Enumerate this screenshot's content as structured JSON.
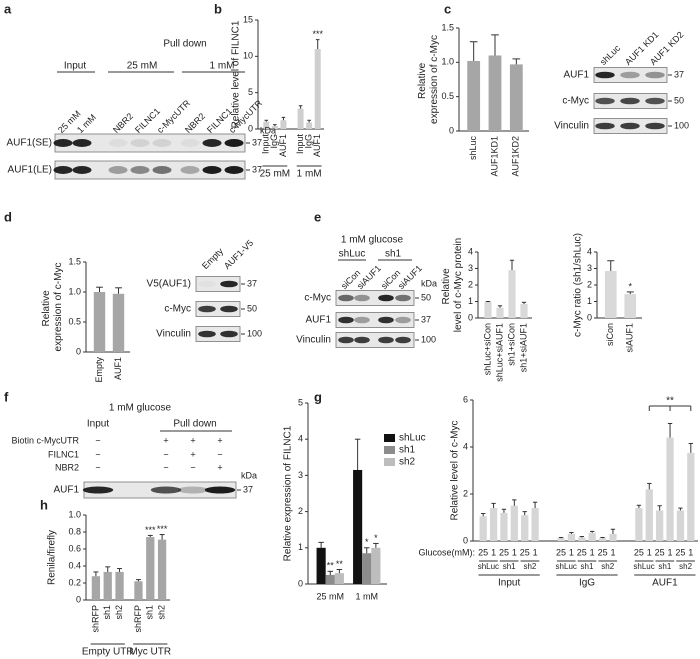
{
  "panel_labels": [
    "a",
    "b",
    "c",
    "d",
    "e",
    "f",
    "g",
    "h"
  ],
  "chart_data": [
    {
      "type": "bar",
      "ylabel": "Relative level of FILNC1",
      "categories": [
        "Input",
        "IgG",
        "AUF1",
        "Input",
        "IgG",
        "AUF1"
      ],
      "groups": [
        "25 mM",
        "1 mM"
      ],
      "values": [
        1.0,
        0.4,
        1.2,
        2.8,
        0.9,
        11.0
      ],
      "errors": [
        0.2,
        0.2,
        0.4,
        0.4,
        0.3,
        1.3
      ],
      "annotations": [
        null,
        null,
        null,
        null,
        null,
        "***"
      ],
      "color": "#cfcfcf",
      "ylim": [
        0,
        15
      ],
      "yticks": [
        0,
        5,
        10,
        15
      ]
    },
    {
      "type": "bar",
      "ylabel": "Relative expression of c-Myc",
      "categories": [
        "shLuc",
        "AUF1KD1",
        "AUF1KD2"
      ],
      "values": [
        1.02,
        1.1,
        0.97
      ],
      "errors": [
        0.28,
        0.3,
        0.08
      ],
      "color": "#a6a6a6",
      "ylim": [
        0,
        1.5
      ],
      "yticks": [
        0,
        0.5,
        {
          "value": 1,
          "label": "1.0"
        },
        1.5
      ]
    },
    {
      "type": "bar",
      "ylabel": "Relative expression of c-Myc",
      "categories": [
        "Empty",
        "AUF1"
      ],
      "values": [
        1.0,
        0.97
      ],
      "errors": [
        0.08,
        0.1
      ],
      "color": "#a6a6a6",
      "ylim": [
        0,
        1.5
      ],
      "yticks": [
        0,
        0.5,
        {
          "value": 1,
          "label": "1.0"
        },
        1.5
      ]
    },
    {
      "type": "bar",
      "ylabel": "Relative level of c-Myc protein",
      "categories": [
        "shLuc+siCon",
        "shLuc+siAUF1",
        "sh1+siCon",
        "sh1+siAUF1"
      ],
      "values": [
        1.0,
        0.62,
        2.9,
        0.85
      ],
      "errors": [
        0,
        0.12,
        0.6,
        0.1
      ],
      "color": "#d9d9d9",
      "ylim": [
        0,
        4
      ],
      "yticks": [
        0,
        1,
        2,
        3,
        4
      ]
    },
    {
      "type": "bar",
      "ylabel": "c-Myc ratio (sh1/shLuc)",
      "categories": [
        "siCon",
        "siAUF1"
      ],
      "values": [
        2.85,
        1.45
      ],
      "errors": [
        0.62,
        0.13
      ],
      "annotations": [
        null,
        "*"
      ],
      "color": "#d9d9d9",
      "ylim": [
        0,
        4
      ],
      "yticks": [
        0,
        1,
        2,
        3,
        4
      ]
    },
    {
      "type": "bar",
      "ylabel": "Relative expression of FILNC1",
      "categories": [
        "25 mM",
        "1 mM"
      ],
      "series": [
        {
          "name": "shLuc",
          "color": "#111111",
          "values": [
            1.0,
            3.15
          ],
          "errors": [
            0.15,
            0.85
          ],
          "annotations": [
            null,
            null
          ]
        },
        {
          "name": "sh1",
          "color": "#8c8c8c",
          "values": [
            0.25,
            0.85
          ],
          "errors": [
            0.1,
            0.15
          ],
          "annotations": [
            "**",
            "*"
          ]
        },
        {
          "name": "sh2",
          "color": "#bdbdbd",
          "values": [
            0.3,
            1.0
          ],
          "errors": [
            0.1,
            0.12
          ],
          "annotations": [
            "**",
            "*"
          ]
        }
      ],
      "ylim": [
        0,
        5
      ],
      "yticks": [
        0,
        1,
        2,
        3,
        4,
        5
      ]
    },
    {
      "type": "bar",
      "ylabel": "Relative level of c-Myc",
      "x_label": "Glucose(mM):",
      "categories": [
        "25",
        "1",
        "25",
        "1",
        "25",
        "1",
        "25",
        "1",
        "25",
        "1",
        "25",
        "1",
        "25",
        "1",
        "25",
        "1",
        "25",
        "1"
      ],
      "subgroups": [
        "shLuc",
        "sh1",
        "sh2",
        "shLuc",
        "sh1",
        "sh2",
        "shLuc",
        "sh1",
        "sh2"
      ],
      "groups": [
        "Input",
        "IgG",
        "AUF1"
      ],
      "values": [
        1.05,
        1.4,
        1.2,
        1.5,
        1.1,
        1.4,
        0.12,
        0.3,
        0.15,
        0.35,
        0.12,
        0.3,
        1.4,
        2.2,
        1.3,
        4.4,
        1.3,
        3.75
      ],
      "errors": [
        0.12,
        0.2,
        0.15,
        0.25,
        0.15,
        0.25,
        0.03,
        0.06,
        0.04,
        0.06,
        0.03,
        0.2,
        0.12,
        0.25,
        0.2,
        0.6,
        0.1,
        0.4
      ],
      "bracket_label": "**",
      "color": "#d6d6d6",
      "ylim": [
        0,
        6
      ],
      "yticks": [
        0,
        2,
        4,
        6
      ]
    },
    {
      "type": "bar",
      "title": "1 mM glucose",
      "ylabel": "Renila/firefly",
      "categories": [
        "shRFP",
        "sh1",
        "sh2",
        "shRFP",
        "sh1",
        "sh2"
      ],
      "groups": [
        "Empty UTR",
        "Myc UTR"
      ],
      "values": [
        0.28,
        0.33,
        0.33,
        0.22,
        0.74,
        0.71
      ],
      "errors": [
        0.05,
        0.06,
        0.04,
        0.02,
        0.02,
        0.06
      ],
      "annotations": [
        null,
        null,
        null,
        null,
        "***",
        "***"
      ],
      "color": "#a6a6a6",
      "ylim": [
        0,
        1
      ],
      "yticks": [
        0,
        0.2,
        0.4,
        0.6,
        0.8,
        {
          "value": 1,
          "label": "1.0"
        }
      ]
    }
  ],
  "blots": [
    {
      "groups": [
        "Input",
        "Pull down"
      ],
      "subgroups": [
        "25 mM",
        "1 mM"
      ],
      "lanes": [
        "25 mM",
        "1 mM",
        "NBR2",
        "FILNC1",
        "c-MycUTR",
        "NBR2",
        "FILNC1",
        "c-MycUTR"
      ],
      "unit": "kDa",
      "rows": [
        {
          "name": "AUF1(SE)",
          "kda": 37
        },
        {
          "name": "AUF1(LE)",
          "kda": 37
        }
      ]
    },
    {
      "lanes": [
        "shLuc",
        "AUF1 KD1",
        "AUF1 KD2"
      ],
      "rows": [
        {
          "name": "AUF1",
          "kda": 37
        },
        {
          "name": "c-Myc",
          "kda": 50
        },
        {
          "name": "Vinculin",
          "kda": 100
        }
      ]
    },
    {
      "lanes": [
        "Empty",
        "AUF1-V5"
      ],
      "rows": [
        {
          "name": "V5(AUF1)",
          "kda": 37
        },
        {
          "name": "c-Myc",
          "kda": 50
        },
        {
          "name": "Vinculin",
          "kda": 100
        }
      ]
    },
    {
      "title": "1 mM glucose",
      "groups": [
        "shLuc",
        "sh1"
      ],
      "lanes": [
        "siCon",
        "siAUF1",
        "siCon",
        "siAUF1"
      ],
      "unit": "kDa",
      "rows": [
        {
          "name": "c-Myc",
          "kda": 50
        },
        {
          "name": "AUF1",
          "kda": 37
        },
        {
          "name": "Vinculin",
          "kda": 100
        }
      ]
    },
    {
      "title": "1 mM glucose",
      "groups": [
        "Input",
        "Pull down"
      ],
      "conditions": [
        {
          "name": "Biotin c-MycUTR",
          "signs": [
            "−",
            "+",
            "+",
            "+"
          ]
        },
        {
          "name": "FILNC1",
          "signs": [
            "−",
            "−",
            "+",
            "−"
          ]
        },
        {
          "name": "NBR2",
          "signs": [
            "−",
            "−",
            "−",
            "+"
          ]
        }
      ],
      "unit": "kDa",
      "rows": [
        {
          "name": "AUF1",
          "kda": 37
        }
      ]
    }
  ]
}
